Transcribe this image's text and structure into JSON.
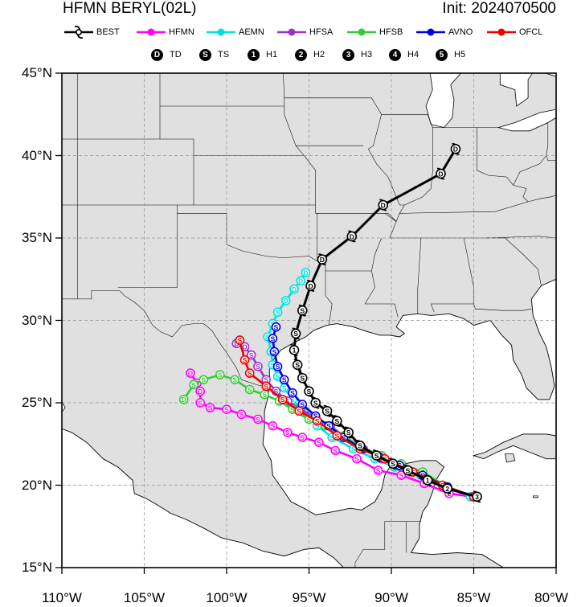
{
  "header": {
    "title": "HFMN BERYL(02L)",
    "init": "Init: 2024070500"
  },
  "legend": [
    {
      "name": "BEST",
      "color": "#000000",
      "kind": "best"
    },
    {
      "name": "HFMN",
      "color": "#ff00ff",
      "kind": "line"
    },
    {
      "name": "AEMN",
      "color": "#00e0e0",
      "kind": "line"
    },
    {
      "name": "HFSA",
      "color": "#9933cc",
      "kind": "line"
    },
    {
      "name": "HFSB",
      "color": "#33cc33",
      "kind": "line"
    },
    {
      "name": "AVNO",
      "color": "#0000dd",
      "kind": "line"
    },
    {
      "name": "OFCL",
      "color": "#ee0000",
      "kind": "line"
    }
  ],
  "intensity_legend": [
    {
      "glyph": "D",
      "label": "TD"
    },
    {
      "glyph": "S",
      "label": "TS"
    },
    {
      "glyph": "1",
      "label": "H1"
    },
    {
      "glyph": "2",
      "label": "H2"
    },
    {
      "glyph": "3",
      "label": "H3"
    },
    {
      "glyph": "4",
      "label": "H4"
    },
    {
      "glyph": "5",
      "label": "H5"
    }
  ],
  "axes": {
    "lon_range": [
      -110,
      -80
    ],
    "lat_range": [
      15,
      45
    ],
    "lon_ticks": [
      {
        "value": -110,
        "label": "110°W"
      },
      {
        "value": -105,
        "label": "105°W"
      },
      {
        "value": -100,
        "label": "100°W"
      },
      {
        "value": -95,
        "label": "95°W"
      },
      {
        "value": -90,
        "label": "90°W"
      },
      {
        "value": -85,
        "label": "85°W"
      },
      {
        "value": -80,
        "label": "80°W"
      }
    ],
    "lat_ticks": [
      {
        "value": 15,
        "label": "15°N"
      },
      {
        "value": 20,
        "label": "20°N"
      },
      {
        "value": 25,
        "label": "25°N"
      },
      {
        "value": 30,
        "label": "30°N"
      },
      {
        "value": 35,
        "label": "35°N"
      },
      {
        "value": 40,
        "label": "40°N"
      },
      {
        "value": 45,
        "label": "45°N"
      }
    ],
    "gridlines": "dashed",
    "land_color": "#e0e0e0",
    "ocean_color": "#ffffff"
  },
  "tracks": [
    {
      "model": "BEST",
      "color": "#000000",
      "points": [
        [
          -84.8,
          19.3,
          "3"
        ],
        [
          -86.6,
          19.8,
          "2"
        ],
        [
          -87.8,
          20.3,
          "1"
        ],
        [
          -89.0,
          20.9,
          "S"
        ],
        [
          -89.9,
          21.3,
          "S"
        ],
        [
          -90.9,
          21.8,
          "S"
        ],
        [
          -91.9,
          22.4,
          "S"
        ],
        [
          -92.6,
          23.2,
          "S"
        ],
        [
          -93.3,
          23.9,
          "S"
        ],
        [
          -93.9,
          24.5,
          "S"
        ],
        [
          -94.6,
          25.0,
          "S"
        ],
        [
          -95.0,
          25.7,
          "S"
        ],
        [
          -95.4,
          26.5,
          "S"
        ],
        [
          -95.7,
          27.3,
          "S"
        ],
        [
          -95.9,
          28.2,
          "1"
        ],
        [
          -95.8,
          29.2,
          "S"
        ],
        [
          -95.4,
          30.6,
          "S"
        ],
        [
          -94.9,
          32.1,
          "D"
        ],
        [
          -94.2,
          33.7,
          "D"
        ],
        [
          -92.4,
          35.1,
          "D"
        ],
        [
          -90.5,
          37.0,
          "D"
        ],
        [
          -87.0,
          38.9,
          "D"
        ],
        [
          -86.1,
          40.4,
          "D"
        ]
      ]
    },
    {
      "model": "HFMN",
      "color": "#ff00ff",
      "points": [
        [
          -85.1,
          19.3,
          "3"
        ],
        [
          -86.5,
          19.5,
          "2"
        ],
        [
          -88.0,
          20.1,
          "S"
        ],
        [
          -89.4,
          20.6,
          "S"
        ],
        [
          -90.8,
          20.9,
          "S"
        ],
        [
          -92.1,
          21.6,
          "S"
        ],
        [
          -93.4,
          22.1,
          "S"
        ],
        [
          -94.4,
          22.6,
          "S"
        ],
        [
          -95.4,
          22.9,
          "S"
        ],
        [
          -96.3,
          23.2,
          "S"
        ],
        [
          -97.2,
          23.6,
          "S"
        ],
        [
          -98.1,
          24.0,
          "S"
        ],
        [
          -99.1,
          24.3,
          "S"
        ],
        [
          -100.0,
          24.6,
          "S"
        ],
        [
          -101.0,
          24.7,
          "S"
        ],
        [
          -101.6,
          25.0,
          "S"
        ],
        [
          -101.6,
          25.7,
          "D"
        ],
        [
          -101.8,
          26.2,
          "D"
        ],
        [
          -102.2,
          26.8,
          "D"
        ]
      ]
    },
    {
      "model": "AEMN",
      "color": "#00e0e0",
      "points": [
        [
          -85.2,
          19.3,
          "2"
        ],
        [
          -86.7,
          19.9,
          "S"
        ],
        [
          -88.2,
          20.6,
          "S"
        ],
        [
          -89.8,
          21.1,
          "S"
        ],
        [
          -91.0,
          21.6,
          "S"
        ],
        [
          -92.3,
          22.2,
          "S"
        ],
        [
          -93.6,
          22.9,
          "S"
        ],
        [
          -94.5,
          23.6,
          "S"
        ],
        [
          -95.3,
          24.4,
          "S"
        ],
        [
          -96.0,
          25.2,
          "S"
        ],
        [
          -96.5,
          25.9,
          "S"
        ],
        [
          -96.9,
          26.6,
          "S"
        ],
        [
          -97.2,
          27.3,
          "S"
        ],
        [
          -97.3,
          28.1,
          "S"
        ],
        [
          -97.5,
          29.0,
          "S"
        ],
        [
          -97.2,
          29.8,
          "S"
        ],
        [
          -96.9,
          30.5,
          "S"
        ],
        [
          -96.4,
          31.2,
          "D"
        ],
        [
          -95.9,
          31.9,
          "D"
        ],
        [
          -95.5,
          32.4,
          "D"
        ],
        [
          -95.2,
          32.9,
          "D"
        ]
      ]
    },
    {
      "model": "HFSA",
      "color": "#9933cc",
      "points": [
        [
          -85.0,
          19.3,
          "3"
        ],
        [
          -86.6,
          19.8,
          "2"
        ],
        [
          -88.0,
          20.5,
          "S"
        ],
        [
          -89.4,
          21.1,
          "S"
        ],
        [
          -90.6,
          21.6,
          "S"
        ],
        [
          -91.7,
          22.2,
          "S"
        ],
        [
          -92.8,
          22.9,
          "S"
        ],
        [
          -93.7,
          23.6,
          "S"
        ],
        [
          -94.6,
          24.1,
          "S"
        ],
        [
          -95.5,
          24.6,
          "S"
        ],
        [
          -96.3,
          25.1,
          "S"
        ],
        [
          -97.0,
          25.7,
          "S"
        ],
        [
          -97.6,
          26.4,
          "S"
        ],
        [
          -98.1,
          27.2,
          "S"
        ],
        [
          -98.5,
          27.9,
          "S"
        ],
        [
          -98.9,
          28.4,
          "D"
        ],
        [
          -99.4,
          28.6,
          "D"
        ]
      ]
    },
    {
      "model": "HFSB",
      "color": "#33cc33",
      "points": [
        [
          -85.0,
          19.3,
          "3"
        ],
        [
          -86.6,
          19.9,
          "2"
        ],
        [
          -88.1,
          20.8,
          "S"
        ],
        [
          -89.4,
          21.3,
          "S"
        ],
        [
          -90.6,
          21.8,
          "S"
        ],
        [
          -91.8,
          22.3,
          "S"
        ],
        [
          -92.9,
          23.0,
          "S"
        ],
        [
          -94.0,
          23.6,
          "S"
        ],
        [
          -95.0,
          24.0,
          "S"
        ],
        [
          -96.0,
          24.6,
          "S"
        ],
        [
          -96.8,
          25.1,
          "S"
        ],
        [
          -97.7,
          25.5,
          "S"
        ],
        [
          -98.6,
          25.8,
          "S"
        ],
        [
          -99.5,
          26.4,
          "S"
        ],
        [
          -100.4,
          26.7,
          "S"
        ],
        [
          -101.4,
          26.4,
          "S"
        ],
        [
          -102.0,
          26.1,
          "S"
        ],
        [
          -102.6,
          25.2,
          "D"
        ]
      ]
    },
    {
      "model": "AVNO",
      "color": "#0000dd",
      "points": [
        [
          -85.0,
          19.3,
          "2"
        ],
        [
          -86.6,
          19.9,
          "1"
        ],
        [
          -88.1,
          20.6,
          "S"
        ],
        [
          -89.5,
          21.2,
          "S"
        ],
        [
          -90.7,
          21.7,
          "S"
        ],
        [
          -91.8,
          22.2,
          "S"
        ],
        [
          -92.9,
          22.9,
          "S"
        ],
        [
          -93.8,
          23.6,
          "S"
        ],
        [
          -94.6,
          24.2,
          "S"
        ],
        [
          -95.4,
          24.9,
          "S"
        ],
        [
          -96.0,
          25.6,
          "S"
        ],
        [
          -96.5,
          26.4,
          "S"
        ],
        [
          -96.9,
          27.2,
          "S"
        ],
        [
          -97.1,
          28.1,
          "S"
        ],
        [
          -97.2,
          28.9,
          "S"
        ],
        [
          -97.0,
          29.6,
          "S"
        ]
      ]
    },
    {
      "model": "OFCL",
      "color": "#ee0000",
      "points": [
        [
          -85.0,
          19.3,
          "3"
        ],
        [
          -86.9,
          20.0,
          "2"
        ],
        [
          -88.7,
          20.8,
          "S"
        ],
        [
          -90.4,
          21.6,
          "S"
        ],
        [
          -91.9,
          22.2,
          "S"
        ],
        [
          -93.3,
          23.0,
          "S"
        ],
        [
          -94.5,
          23.9,
          "S"
        ],
        [
          -95.6,
          24.5,
          "S"
        ],
        [
          -96.6,
          25.2,
          "S"
        ],
        [
          -97.6,
          26.0,
          "S"
        ],
        [
          -98.6,
          26.8,
          "S"
        ],
        [
          -98.9,
          27.6,
          "S"
        ],
        [
          -99.2,
          28.8,
          "S"
        ]
      ]
    }
  ]
}
